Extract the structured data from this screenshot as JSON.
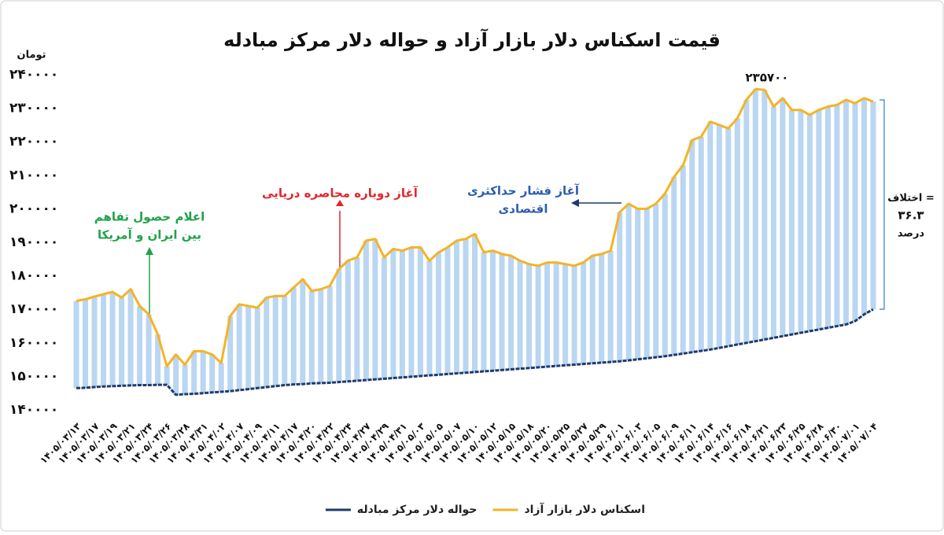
{
  "chart_data": {
    "type": "line",
    "title": "قیمت اسکناس دلار بازار آزاد و حواله دلار مرکز مبادله",
    "y_unit": "تومان",
    "categories": [
      "۱۴۰۵/۰۳/۱۳",
      null,
      "۱۴۰۵/۰۳/۱۷",
      null,
      "۱۴۰۵/۰۳/۱۹",
      null,
      "۱۴۰۵/۰۳/۲۱",
      null,
      "۱۴۰۵/۰۳/۲۴",
      null,
      "۱۴۰۵/۰۳/۲۶",
      null,
      "۱۴۰۵/۰۳/۲۸",
      null,
      "۱۴۰۵/۰۳/۳۱",
      null,
      "۱۴۰۵/۰۴/۰۲",
      null,
      "۱۴۰۵/۰۴/۰۷",
      null,
      "۱۴۰۵/۰۴/۰۹",
      null,
      "۱۴۰۵/۰۴/۱۱",
      null,
      "۱۴۰۵/۰۴/۱۷",
      null,
      "۱۴۰۵/۰۴/۲۰",
      null,
      "۱۴۰۵/۰۴/۲۲",
      null,
      "۱۴۰۵/۰۴/۲۴",
      null,
      "۱۴۰۵/۰۴/۲۷",
      null,
      "۱۴۰۵/۰۴/۲۹",
      null,
      "۱۴۰۵/۰۴/۳۱",
      null,
      "۱۴۰۵/۰۵/۰۳",
      null,
      "۱۴۰۵/۰۵/۰۵",
      null,
      "۱۴۰۵/۰۵/۰۷",
      null,
      "۱۴۰۵/۰۵/۱۰",
      null,
      "۱۴۰۵/۰۵/۱۲",
      null,
      "۱۴۰۵/۰۵/۱۵",
      null,
      "۱۴۰۵/۰۵/۱۸",
      null,
      "۱۴۰۵/۰۵/۲۰",
      null,
      "۱۴۰۵/۰۵/۲۵",
      null,
      "۱۴۰۵/۰۵/۲۷",
      null,
      "۱۴۰۵/۰۵/۲۹",
      null,
      "۱۴۰۵/۰۶/۰۱",
      null,
      "۱۴۰۵/۰۶/۰۳",
      null,
      "۱۴۰۵/۰۶/۰۵",
      null,
      "۱۴۰۵/۰۶/۰۹",
      null,
      "۱۴۰۵/۰۶/۱۱",
      null,
      "۱۴۰۵/۰۶/۱۴",
      null,
      "۱۴۰۵/۰۶/۱۶",
      null,
      "۱۴۰۵/۰۶/۱۸",
      null,
      "۱۴۰۵/۰۶/۲۱",
      null,
      "۱۴۰۵/۰۶/۲۳",
      null,
      "۱۴۰۵/۰۶/۲۵",
      null,
      "۱۴۰۵/۰۶/۲۸",
      null,
      "۱۴۰۵/۰۶/۳۰",
      null,
      "۱۴۰۵/۰۷/۰۱",
      null,
      "۱۴۰۵/۰۷/۰۴"
    ],
    "series": [
      {
        "name": "اسکناس دلار بازار آزاد",
        "color": "#f5b324",
        "values": [
          172500,
          173000,
          173800,
          174500,
          175200,
          173500,
          176000,
          171000,
          168500,
          162500,
          153000,
          156500,
          153500,
          157500,
          157500,
          156500,
          154000,
          168000,
          171500,
          171000,
          170500,
          173500,
          174000,
          174000,
          176500,
          179000,
          175500,
          176000,
          177000,
          182000,
          184500,
          185500,
          190500,
          191000,
          185500,
          188000,
          187500,
          188500,
          188500,
          184500,
          187000,
          188500,
          190500,
          191000,
          192500,
          187000,
          187500,
          186500,
          186000,
          184500,
          183500,
          183000,
          184000,
          184000,
          183500,
          183000,
          184000,
          186000,
          186500,
          187500,
          199000,
          201500,
          200000,
          200000,
          201500,
          204500,
          209500,
          213000,
          220500,
          221500,
          226000,
          225000,
          224000,
          227000,
          232500,
          235700,
          235500,
          230500,
          233000,
          229500,
          229500,
          228000,
          229500,
          230500,
          231000,
          232500,
          231500,
          233000,
          232000
        ]
      },
      {
        "name": "حواله دلار مرکز مبادله",
        "color": "#1f3a6e",
        "values": [
          146500,
          146600,
          146800,
          147000,
          147100,
          147200,
          147300,
          147400,
          147400,
          147500,
          147500,
          144500,
          144700,
          144800,
          145000,
          145200,
          145400,
          145600,
          145900,
          146200,
          146500,
          146800,
          147100,
          147400,
          147600,
          147700,
          147900,
          148000,
          148100,
          148300,
          148500,
          148700,
          148900,
          149100,
          149300,
          149500,
          149700,
          149900,
          150100,
          150300,
          150500,
          150700,
          150900,
          151100,
          151300,
          151500,
          151700,
          151900,
          152100,
          152300,
          152500,
          152700,
          152900,
          153100,
          153300,
          153500,
          153700,
          153900,
          154100,
          154300,
          154500,
          154800,
          155100,
          155400,
          155700,
          156000,
          156400,
          156800,
          157200,
          157600,
          158000,
          158500,
          159000,
          159500,
          160000,
          160500,
          161000,
          161500,
          162000,
          162500,
          163000,
          163500,
          164000,
          164500,
          165000,
          165500,
          166500,
          168500,
          170000
        ]
      }
    ],
    "bar_color": "#b9d6f2",
    "ylim": [
      140000,
      240000
    ],
    "yticks": [
      {
        "value": 140000,
        "label": "۱۴۰۰۰۰"
      },
      {
        "value": 150000,
        "label": "۱۵۰۰۰۰"
      },
      {
        "value": 160000,
        "label": "۱۶۰۰۰۰"
      },
      {
        "value": 170000,
        "label": "۱۷۰۰۰۰"
      },
      {
        "value": 180000,
        "label": "۱۸۰۰۰۰"
      },
      {
        "value": 190000,
        "label": "۱۹۰۰۰۰"
      },
      {
        "value": 200000,
        "label": "۲۰۰۰۰۰"
      },
      {
        "value": 210000,
        "label": "۲۱۰۰۰۰"
      },
      {
        "value": 220000,
        "label": "۲۲۰۰۰۰"
      },
      {
        "value": 230000,
        "label": "۲۳۰۰۰۰"
      },
      {
        "value": 240000,
        "label": "۲۴۰۰۰۰"
      }
    ],
    "annotations": {
      "peak": "۲۳۵۷۰۰",
      "agreement": [
        "اعلام حصول تفاهم",
        "بین ایران و آمریکا"
      ],
      "blockade": "آغاز دوباره محاصره دریایی",
      "pressure": [
        "آغاز فشار حداکثری",
        "اقتصادی"
      ],
      "gap": [
        "اختلاف =",
        "۳۶.۳",
        "درصد"
      ]
    }
  }
}
